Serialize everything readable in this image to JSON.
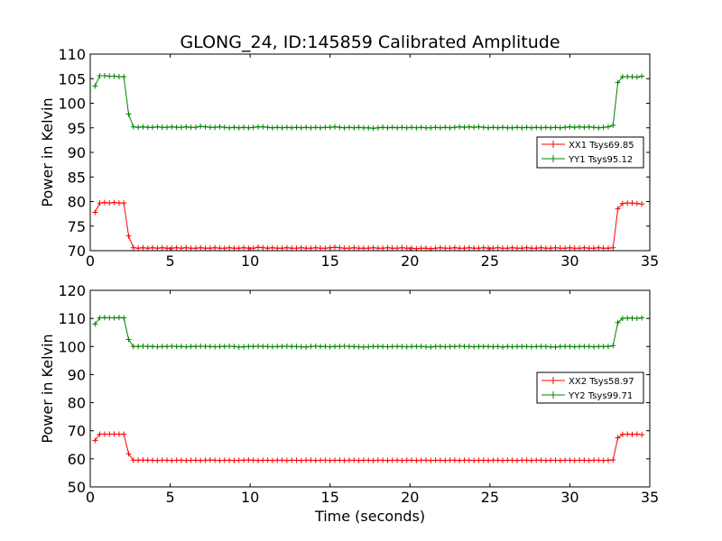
{
  "chart_data": [
    {
      "type": "line",
      "title": "GLONG_24, ID:145859 Calibrated Amplitude",
      "xlabel": "",
      "ylabel": "Power in Kelvin",
      "xlim": [
        0,
        35
      ],
      "ylim": [
        70,
        110
      ],
      "xticks": [
        0,
        5,
        10,
        15,
        20,
        25,
        30,
        35
      ],
      "yticks": [
        70,
        75,
        80,
        85,
        90,
        95,
        100,
        105,
        110
      ],
      "legend_position": "center-right",
      "series": [
        {
          "name": "XX1 Tsys69.85",
          "color": "#ff0000",
          "x": [
            0.3,
            0.6,
            0.9,
            1.2,
            1.5,
            1.8,
            2.1,
            2.4,
            2.7,
            3.0,
            3.3,
            3.6,
            3.9,
            4.2,
            4.5,
            4.8,
            5.1,
            5.4,
            5.7,
            6.0,
            6.3,
            6.6,
            6.9,
            7.2,
            7.5,
            7.8,
            8.1,
            8.4,
            8.7,
            9.0,
            9.3,
            9.6,
            9.9,
            10.2,
            10.5,
            10.8,
            11.1,
            11.4,
            11.7,
            12.0,
            12.3,
            12.6,
            12.9,
            13.2,
            13.5,
            13.8,
            14.1,
            14.4,
            14.7,
            15.0,
            15.3,
            15.6,
            15.9,
            16.2,
            16.5,
            16.8,
            17.1,
            17.4,
            17.7,
            18.0,
            18.3,
            18.6,
            18.9,
            19.2,
            19.5,
            19.8,
            20.1,
            20.4,
            20.7,
            21.0,
            21.3,
            21.6,
            21.9,
            22.2,
            22.5,
            22.8,
            23.1,
            23.4,
            23.7,
            24.0,
            24.3,
            24.6,
            24.9,
            25.2,
            25.5,
            25.8,
            26.1,
            26.4,
            26.7,
            27.0,
            27.3,
            27.6,
            27.9,
            28.2,
            28.5,
            28.8,
            29.1,
            29.4,
            29.7,
            30.0,
            30.3,
            30.6,
            30.9,
            31.2,
            31.5,
            31.8,
            32.1,
            32.4,
            32.7,
            33.0,
            33.3,
            33.6,
            33.9,
            34.2,
            34.5
          ],
          "y": [
            77.8,
            79.7,
            79.8,
            79.7,
            79.8,
            79.7,
            79.7,
            73.0,
            70.6,
            70.5,
            70.6,
            70.5,
            70.6,
            70.5,
            70.6,
            70.5,
            70.5,
            70.6,
            70.5,
            70.6,
            70.5,
            70.5,
            70.6,
            70.5,
            70.5,
            70.6,
            70.5,
            70.5,
            70.6,
            70.5,
            70.5,
            70.6,
            70.5,
            70.5,
            70.7,
            70.6,
            70.5,
            70.6,
            70.5,
            70.5,
            70.6,
            70.5,
            70.5,
            70.6,
            70.5,
            70.5,
            70.6,
            70.5,
            70.5,
            70.6,
            70.7,
            70.6,
            70.5,
            70.5,
            70.6,
            70.5,
            70.5,
            70.5,
            70.6,
            70.5,
            70.5,
            70.6,
            70.5,
            70.5,
            70.6,
            70.5,
            70.5,
            70.4,
            70.5,
            70.5,
            70.4,
            70.5,
            70.6,
            70.5,
            70.5,
            70.6,
            70.5,
            70.5,
            70.6,
            70.5,
            70.5,
            70.6,
            70.5,
            70.5,
            70.6,
            70.5,
            70.5,
            70.6,
            70.5,
            70.5,
            70.6,
            70.5,
            70.5,
            70.6,
            70.5,
            70.5,
            70.6,
            70.5,
            70.5,
            70.6,
            70.5,
            70.5,
            70.6,
            70.5,
            70.5,
            70.6,
            70.5,
            70.5,
            70.6,
            78.5,
            79.6,
            79.7,
            79.7,
            79.6,
            79.5
          ]
        },
        {
          "name": "YY1 Tsys95.12",
          "color": "#008000",
          "x": [
            0.3,
            0.6,
            0.9,
            1.2,
            1.5,
            1.8,
            2.1,
            2.4,
            2.7,
            3.0,
            3.3,
            3.6,
            3.9,
            4.2,
            4.5,
            4.8,
            5.1,
            5.4,
            5.7,
            6.0,
            6.3,
            6.6,
            6.9,
            7.2,
            7.5,
            7.8,
            8.1,
            8.4,
            8.7,
            9.0,
            9.3,
            9.6,
            9.9,
            10.2,
            10.5,
            10.8,
            11.1,
            11.4,
            11.7,
            12.0,
            12.3,
            12.6,
            12.9,
            13.2,
            13.5,
            13.8,
            14.1,
            14.4,
            14.7,
            15.0,
            15.3,
            15.6,
            15.9,
            16.2,
            16.5,
            16.8,
            17.1,
            17.4,
            17.7,
            18.0,
            18.3,
            18.6,
            18.9,
            19.2,
            19.5,
            19.8,
            20.1,
            20.4,
            20.7,
            21.0,
            21.3,
            21.6,
            21.9,
            22.2,
            22.5,
            22.8,
            23.1,
            23.4,
            23.7,
            24.0,
            24.3,
            24.6,
            24.9,
            25.2,
            25.5,
            25.8,
            26.1,
            26.4,
            26.7,
            27.0,
            27.3,
            27.6,
            27.9,
            28.2,
            28.5,
            28.8,
            29.1,
            29.4,
            29.7,
            30.0,
            30.3,
            30.6,
            30.9,
            31.2,
            31.5,
            31.8,
            32.1,
            32.4,
            32.7,
            33.0,
            33.3,
            33.6,
            33.9,
            34.2,
            34.5
          ],
          "y": [
            103.5,
            105.6,
            105.6,
            105.5,
            105.5,
            105.4,
            105.4,
            97.8,
            95.2,
            95.1,
            95.2,
            95.1,
            95.1,
            95.2,
            95.1,
            95.1,
            95.2,
            95.1,
            95.1,
            95.2,
            95.1,
            95.1,
            95.3,
            95.2,
            95.1,
            95.1,
            95.2,
            95.1,
            95.0,
            95.1,
            95.0,
            95.1,
            95.0,
            95.1,
            95.2,
            95.2,
            95.1,
            95.0,
            95.1,
            95.0,
            95.1,
            95.0,
            95.1,
            95.0,
            95.1,
            95.0,
            95.1,
            95.0,
            95.1,
            95.1,
            95.2,
            95.1,
            95.0,
            95.1,
            95.0,
            95.1,
            95.0,
            95.0,
            94.9,
            95.0,
            95.1,
            95.0,
            95.1,
            95.0,
            95.1,
            95.0,
            95.1,
            95.0,
            95.1,
            95.0,
            95.0,
            95.1,
            95.0,
            95.1,
            95.0,
            95.1,
            95.2,
            95.1,
            95.2,
            95.1,
            95.2,
            95.1,
            95.0,
            95.1,
            95.0,
            95.1,
            95.0,
            95.0,
            95.1,
            95.0,
            95.1,
            95.0,
            95.1,
            95.0,
            95.1,
            95.0,
            95.1,
            95.0,
            95.1,
            95.2,
            95.1,
            95.2,
            95.1,
            95.2,
            95.1,
            95.0,
            95.1,
            95.2,
            95.5,
            104.2,
            105.4,
            105.4,
            105.4,
            105.3,
            105.5
          ]
        }
      ]
    },
    {
      "type": "line",
      "title": "",
      "xlabel": "Time (seconds)",
      "ylabel": "Power in Kelvin",
      "xlim": [
        0,
        35
      ],
      "ylim": [
        50,
        120
      ],
      "xticks": [
        0,
        5,
        10,
        15,
        20,
        25,
        30,
        35
      ],
      "yticks": [
        50,
        60,
        70,
        80,
        90,
        100,
        110,
        120
      ],
      "legend_position": "center-right",
      "series": [
        {
          "name": "XX2 Tsys58.97",
          "color": "#ff0000",
          "x": [
            0.3,
            0.6,
            0.9,
            1.2,
            1.5,
            1.8,
            2.1,
            2.4,
            2.7,
            3.0,
            3.3,
            3.6,
            3.9,
            4.2,
            4.5,
            4.8,
            5.1,
            5.4,
            5.7,
            6.0,
            6.3,
            6.6,
            6.9,
            7.2,
            7.5,
            7.8,
            8.1,
            8.4,
            8.7,
            9.0,
            9.3,
            9.6,
            9.9,
            10.2,
            10.5,
            10.8,
            11.1,
            11.4,
            11.7,
            12.0,
            12.3,
            12.6,
            12.9,
            13.2,
            13.5,
            13.8,
            14.1,
            14.4,
            14.7,
            15.0,
            15.3,
            15.6,
            15.9,
            16.2,
            16.5,
            16.8,
            17.1,
            17.4,
            17.7,
            18.0,
            18.3,
            18.6,
            18.9,
            19.2,
            19.5,
            19.8,
            20.1,
            20.4,
            20.7,
            21.0,
            21.3,
            21.6,
            21.9,
            22.2,
            22.5,
            22.8,
            23.1,
            23.4,
            23.7,
            24.0,
            24.3,
            24.6,
            24.9,
            25.2,
            25.5,
            25.8,
            26.1,
            26.4,
            26.7,
            27.0,
            27.3,
            27.6,
            27.9,
            28.2,
            28.5,
            28.8,
            29.1,
            29.4,
            29.7,
            30.0,
            30.3,
            30.6,
            30.9,
            31.2,
            31.5,
            31.8,
            32.1,
            32.4,
            32.7,
            33.0,
            33.3,
            33.6,
            33.9,
            34.2,
            34.5
          ],
          "y": [
            66.5,
            68.8,
            68.8,
            68.8,
            68.8,
            68.8,
            68.8,
            61.8,
            59.5,
            59.5,
            59.6,
            59.5,
            59.5,
            59.4,
            59.5,
            59.5,
            59.4,
            59.5,
            59.5,
            59.4,
            59.5,
            59.5,
            59.4,
            59.5,
            59.6,
            59.5,
            59.4,
            59.5,
            59.5,
            59.4,
            59.5,
            59.5,
            59.6,
            59.5,
            59.4,
            59.5,
            59.5,
            59.4,
            59.5,
            59.5,
            59.4,
            59.5,
            59.5,
            59.4,
            59.5,
            59.5,
            59.4,
            59.5,
            59.5,
            59.4,
            59.5,
            59.5,
            59.4,
            59.5,
            59.5,
            59.4,
            59.5,
            59.5,
            59.4,
            59.5,
            59.5,
            59.4,
            59.5,
            59.5,
            59.4,
            59.5,
            59.5,
            59.4,
            59.5,
            59.5,
            59.4,
            59.5,
            59.5,
            59.4,
            59.5,
            59.5,
            59.4,
            59.5,
            59.5,
            59.4,
            59.5,
            59.5,
            59.4,
            59.5,
            59.5,
            59.4,
            59.5,
            59.5,
            59.4,
            59.5,
            59.5,
            59.4,
            59.5,
            59.5,
            59.4,
            59.5,
            59.5,
            59.4,
            59.5,
            59.5,
            59.4,
            59.5,
            59.5,
            59.4,
            59.5,
            59.5,
            59.4,
            59.5,
            59.6,
            67.5,
            68.7,
            68.8,
            68.7,
            68.8,
            68.6
          ]
        },
        {
          "name": "YY2 Tsys99.71",
          "color": "#008000",
          "x": [
            0.3,
            0.6,
            0.9,
            1.2,
            1.5,
            1.8,
            2.1,
            2.4,
            2.7,
            3.0,
            3.3,
            3.6,
            3.9,
            4.2,
            4.5,
            4.8,
            5.1,
            5.4,
            5.7,
            6.0,
            6.3,
            6.6,
            6.9,
            7.2,
            7.5,
            7.8,
            8.1,
            8.4,
            8.7,
            9.0,
            9.3,
            9.6,
            9.9,
            10.2,
            10.5,
            10.8,
            11.1,
            11.4,
            11.7,
            12.0,
            12.3,
            12.6,
            12.9,
            13.2,
            13.5,
            13.8,
            14.1,
            14.4,
            14.7,
            15.0,
            15.3,
            15.6,
            15.9,
            16.2,
            16.5,
            16.8,
            17.1,
            17.4,
            17.7,
            18.0,
            18.3,
            18.6,
            18.9,
            19.2,
            19.5,
            19.8,
            20.1,
            20.4,
            20.7,
            21.0,
            21.3,
            21.6,
            21.9,
            22.2,
            22.5,
            22.8,
            23.1,
            23.4,
            23.7,
            24.0,
            24.3,
            24.6,
            24.9,
            25.2,
            25.5,
            25.8,
            26.1,
            26.4,
            26.7,
            27.0,
            27.3,
            27.6,
            27.9,
            28.2,
            28.5,
            28.8,
            29.1,
            29.4,
            29.7,
            30.0,
            30.3,
            30.6,
            30.9,
            31.2,
            31.5,
            31.8,
            32.1,
            32.4,
            32.7,
            33.0,
            33.3,
            33.6,
            33.9,
            34.2,
            34.5
          ],
          "y": [
            108.0,
            110.2,
            110.3,
            110.2,
            110.2,
            110.3,
            110.2,
            102.5,
            100.0,
            100.0,
            100.1,
            100.0,
            100.0,
            99.9,
            100.0,
            100.0,
            100.1,
            100.0,
            100.0,
            99.9,
            100.0,
            100.0,
            100.1,
            100.0,
            100.0,
            99.9,
            100.0,
            100.0,
            100.1,
            100.0,
            99.8,
            99.9,
            100.0,
            100.0,
            100.1,
            100.0,
            100.0,
            99.9,
            100.0,
            100.0,
            100.1,
            100.0,
            100.0,
            99.9,
            99.8,
            100.0,
            100.1,
            100.0,
            100.0,
            99.9,
            100.0,
            100.0,
            100.1,
            100.0,
            100.0,
            99.9,
            99.8,
            99.9,
            100.0,
            100.0,
            100.0,
            99.9,
            100.0,
            100.0,
            100.0,
            99.9,
            100.0,
            100.0,
            100.0,
            99.9,
            99.8,
            100.0,
            100.0,
            99.9,
            100.0,
            100.0,
            100.1,
            100.0,
            100.0,
            99.9,
            100.0,
            100.0,
            100.0,
            99.9,
            100.0,
            99.8,
            100.0,
            99.9,
            100.0,
            100.0,
            100.0,
            99.9,
            100.0,
            100.0,
            100.0,
            99.9,
            99.8,
            100.0,
            100.0,
            100.0,
            99.9,
            100.0,
            100.0,
            100.0,
            99.9,
            100.0,
            100.0,
            100.0,
            100.3,
            108.5,
            110.0,
            110.1,
            110.1,
            110.0,
            110.2
          ]
        }
      ]
    }
  ]
}
